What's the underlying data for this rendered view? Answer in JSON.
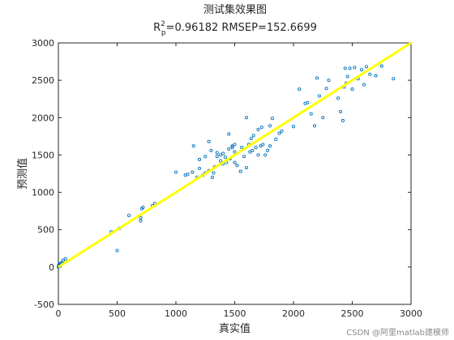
{
  "chart_data": {
    "type": "scatter",
    "title": "测试集效果图",
    "subtitle": {
      "r_symbol": "R",
      "superscript": "2",
      "subscript": "p",
      "text": "=0.96182  RMSEP=152.6699"
    },
    "xlabel": "真实值",
    "ylabel": "预测值",
    "xlim": [
      0,
      3000
    ],
    "ylim": [
      -500,
      3000
    ],
    "xticks": [
      0,
      500,
      1000,
      1500,
      2000,
      2500,
      3000
    ],
    "yticks": [
      -500,
      0,
      500,
      1000,
      1500,
      2000,
      2500,
      3000
    ],
    "xtick_labels": [
      "0",
      "500",
      "1000",
      "1500",
      "2000",
      "2500",
      "3000"
    ],
    "ytick_labels": [
      "-500",
      "0",
      "500",
      "1000",
      "1500",
      "2000",
      "2500",
      "3000"
    ],
    "grid": false,
    "marker_color": "#0072bd",
    "fit_line_color": "#ffff00",
    "fit_line": {
      "x": [
        0,
        3000
      ],
      "y": [
        0,
        3000
      ]
    },
    "points": [
      [
        0,
        0
      ],
      [
        3,
        15
      ],
      [
        5,
        30
      ],
      [
        8,
        10
      ],
      [
        10,
        45
      ],
      [
        12,
        20
      ],
      [
        15,
        35
      ],
      [
        20,
        25
      ],
      [
        25,
        50
      ],
      [
        30,
        60
      ],
      [
        40,
        90
      ],
      [
        60,
        110
      ],
      [
        450,
        470
      ],
      [
        500,
        220
      ],
      [
        520,
        520
      ],
      [
        600,
        690
      ],
      [
        700,
        620
      ],
      [
        700,
        660
      ],
      [
        710,
        780
      ],
      [
        720,
        800
      ],
      [
        800,
        820
      ],
      [
        820,
        850
      ],
      [
        1000,
        1270
      ],
      [
        1080,
        1230
      ],
      [
        1100,
        1240
      ],
      [
        1140,
        1270
      ],
      [
        1150,
        1620
      ],
      [
        1180,
        1200
      ],
      [
        1200,
        1320
      ],
      [
        1200,
        1440
      ],
      [
        1230,
        1230
      ],
      [
        1250,
        1260
      ],
      [
        1250,
        1480
      ],
      [
        1280,
        1290
      ],
      [
        1280,
        1680
      ],
      [
        1300,
        1560
      ],
      [
        1310,
        1200
      ],
      [
        1320,
        1260
      ],
      [
        1330,
        1340
      ],
      [
        1350,
        1480
      ],
      [
        1350,
        1530
      ],
      [
        1380,
        1420
      ],
      [
        1380,
        1500
      ],
      [
        1400,
        1380
      ],
      [
        1400,
        1520
      ],
      [
        1420,
        1470
      ],
      [
        1430,
        1400
      ],
      [
        1450,
        1580
      ],
      [
        1450,
        1780
      ],
      [
        1460,
        1450
      ],
      [
        1480,
        1600
      ],
      [
        1480,
        1620
      ],
      [
        1500,
        1400
      ],
      [
        1500,
        1540
      ],
      [
        1500,
        1640
      ],
      [
        1520,
        1360
      ],
      [
        1550,
        1280
      ],
      [
        1560,
        1600
      ],
      [
        1580,
        1480
      ],
      [
        1600,
        1330
      ],
      [
        1600,
        2000
      ],
      [
        1620,
        1640
      ],
      [
        1630,
        1540
      ],
      [
        1640,
        1720
      ],
      [
        1650,
        1560
      ],
      [
        1660,
        1760
      ],
      [
        1680,
        1600
      ],
      [
        1700,
        1500
      ],
      [
        1700,
        1840
      ],
      [
        1720,
        1620
      ],
      [
        1730,
        1870
      ],
      [
        1740,
        1640
      ],
      [
        1760,
        1500
      ],
      [
        1780,
        1560
      ],
      [
        1800,
        1620
      ],
      [
        1800,
        1890
      ],
      [
        1820,
        1990
      ],
      [
        1850,
        1710
      ],
      [
        1880,
        1790
      ],
      [
        1900,
        1820
      ],
      [
        2000,
        1880
      ],
      [
        2050,
        2380
      ],
      [
        2100,
        2190
      ],
      [
        2120,
        2200
      ],
      [
        2150,
        2050
      ],
      [
        2180,
        1890
      ],
      [
        2200,
        2530
      ],
      [
        2220,
        2290
      ],
      [
        2250,
        2000
      ],
      [
        2280,
        2390
      ],
      [
        2300,
        2500
      ],
      [
        2380,
        2260
      ],
      [
        2400,
        2080
      ],
      [
        2420,
        1960
      ],
      [
        2430,
        2410
      ],
      [
        2440,
        2660
      ],
      [
        2450,
        2460
      ],
      [
        2460,
        2550
      ],
      [
        2480,
        2660
      ],
      [
        2500,
        2380
      ],
      [
        2520,
        2670
      ],
      [
        2550,
        2520
      ],
      [
        2580,
        2640
      ],
      [
        2600,
        2440
      ],
      [
        2620,
        2680
      ],
      [
        2650,
        2580
      ],
      [
        2700,
        2560
      ],
      [
        2750,
        2690
      ],
      [
        2850,
        2520
      ]
    ]
  },
  "watermark": "CSDN @阿里matlab建模师"
}
